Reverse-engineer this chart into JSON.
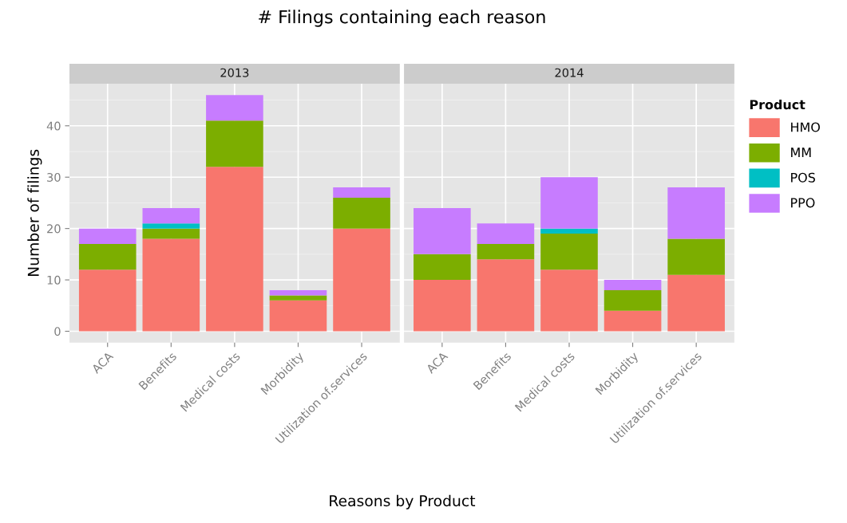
{
  "chart_data": [
    {
      "type": "bar",
      "stacked": true,
      "title": "# Filings containing each reason",
      "subtitle": "2013",
      "xlabel": "Reasons by Product",
      "ylabel": "Number of filings",
      "categories": [
        "ACA",
        "Benefits",
        "Medical costs",
        "Morbidity",
        "Utilization of.services"
      ],
      "ylim": [
        -2.2,
        48.2
      ],
      "yticks": [
        0,
        10,
        20,
        30,
        40
      ],
      "grid": true,
      "series": [
        {
          "color": "#f8766d",
          "values": [
            12,
            18,
            32,
            6,
            20
          ]
        },
        {
          "color": "#7cae00",
          "values": [
            5,
            2,
            9,
            1,
            6
          ]
        },
        {
          "color": "#00bfc4",
          "values": [
            0,
            1,
            0,
            0,
            0
          ]
        },
        {
          "color": "#c77cff",
          "values": [
            3,
            3,
            5,
            1,
            2
          ]
        }
      ]
    },
    {
      "type": "bar",
      "stacked": true,
      "subtitle": "2014",
      "categories": [
        "ACA",
        "Benefits",
        "Medical costs",
        "Morbidity",
        "Utilization of.services"
      ],
      "ylim": [
        -2.2,
        48.2
      ],
      "yticks": [
        0,
        10,
        20,
        30,
        40
      ],
      "grid": true,
      "legend": "right",
      "legend_title": "Product",
      "tick_labels": "x",
      "series": [
        {
          "name": "HMO",
          "color": "#f8766d",
          "values": [
            10,
            14,
            12,
            4,
            11
          ]
        },
        {
          "name": "MM",
          "color": "#7cae00",
          "values": [
            5,
            3,
            7,
            4,
            7
          ]
        },
        {
          "name": "POS",
          "color": "#00bfc4",
          "values": [
            0,
            0,
            1,
            0,
            0
          ]
        },
        {
          "name": "PPO",
          "color": "#c77cff",
          "values": [
            9,
            4,
            10,
            2,
            10
          ]
        }
      ]
    }
  ]
}
